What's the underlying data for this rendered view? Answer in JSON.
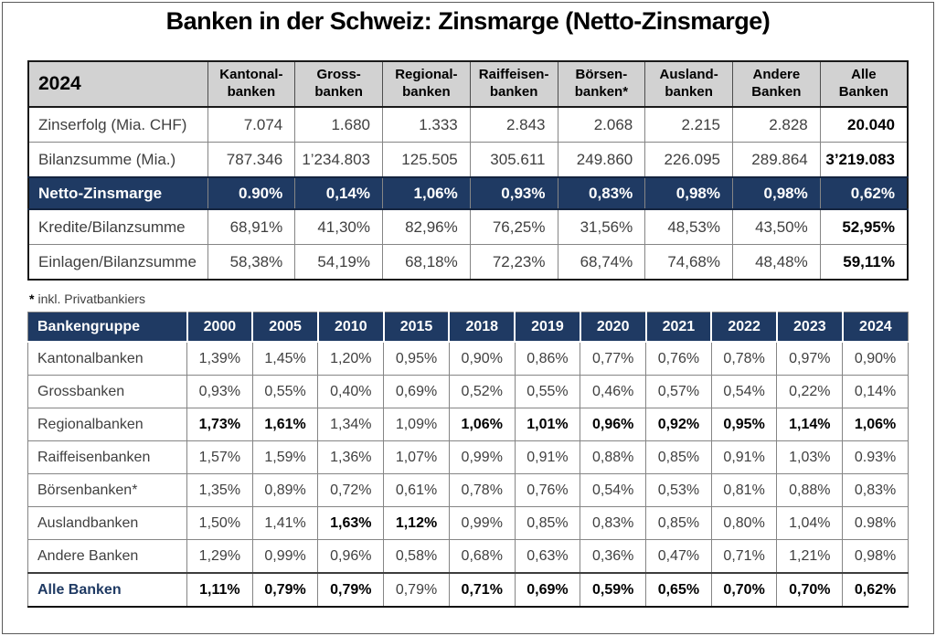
{
  "page": {
    "title": "Banken in der Schweiz: Zinsmarge (Netto-Zinsmarge)",
    "footnote_marker": "*",
    "footnote_text": "inkl. Privatbankiers"
  },
  "colors": {
    "navy": "#1f3a63",
    "header_gray": "#d2d2d2",
    "text_gray": "#3f3f3f",
    "bold_text": "#000000",
    "highlight_text": "#ffffff"
  },
  "table1": {
    "corner_label": "2024",
    "columns": [
      "Kantonal-\nbanken",
      "Gross-\nbanken",
      "Regional-\nbanken",
      "Raiffeisen-\nbanken",
      "Börsen-\nbanken*",
      "Ausland-\nbanken",
      "Andere\nBanken",
      "Alle\nBanken"
    ],
    "rows": [
      {
        "label": "Zinserfolg (Mia. CHF)",
        "highlight": false,
        "values": [
          "7.074",
          "1.680",
          "1.333",
          "2.843",
          "2.068",
          "2.215",
          "2.828",
          "20.040"
        ],
        "bold": [
          false,
          false,
          false,
          false,
          false,
          false,
          false,
          true
        ]
      },
      {
        "label": "Bilanzsumme (Mia.)",
        "highlight": false,
        "values": [
          "787.346",
          "1’234.803",
          "125.505",
          "305.611",
          "249.860",
          "226.095",
          "289.864",
          "3’219.083"
        ],
        "bold": [
          false,
          false,
          false,
          false,
          false,
          false,
          false,
          true
        ]
      },
      {
        "label": "Netto-Zinsmarge",
        "highlight": true,
        "values": [
          "0.90%",
          "0,14%",
          "1,06%",
          "0,93%",
          "0,83%",
          "0,98%",
          "0,98%",
          "0,62%"
        ],
        "bold": [
          true,
          true,
          true,
          true,
          true,
          true,
          true,
          true
        ]
      },
      {
        "label": "Kredite/Bilanzsumme",
        "highlight": false,
        "values": [
          "68,91%",
          "41,30%",
          "82,96%",
          "76,25%",
          "31,56%",
          "48,53%",
          "43,50%",
          "52,95%"
        ],
        "bold": [
          false,
          false,
          false,
          false,
          false,
          false,
          false,
          true
        ]
      },
      {
        "label": "Einlagen/Bilanzsumme",
        "highlight": false,
        "values": [
          "58,38%",
          "54,19%",
          "68,18%",
          "72,23%",
          "68,74%",
          "74,68%",
          "48,48%",
          "59,11%"
        ],
        "bold": [
          false,
          false,
          false,
          false,
          false,
          false,
          false,
          true
        ]
      }
    ]
  },
  "table2": {
    "header": [
      "Bankengruppe",
      "2000",
      "2005",
      "2010",
      "2015",
      "2018",
      "2019",
      "2020",
      "2021",
      "2022",
      "2023",
      "2024"
    ],
    "rows": [
      {
        "label": "Kantonalbanken",
        "total": false,
        "values": [
          "1,39%",
          "1,45%",
          "1,20%",
          "0,95%",
          "0,90%",
          "0,86%",
          "0,77%",
          "0,76%",
          "0,78%",
          "0,97%",
          "0,90%"
        ],
        "bold": [
          false,
          false,
          false,
          false,
          false,
          false,
          false,
          false,
          false,
          false,
          false
        ]
      },
      {
        "label": "Grossbanken",
        "total": false,
        "values": [
          "0,93%",
          "0,55%",
          "0,40%",
          "0,69%",
          "0,52%",
          "0,55%",
          "0,46%",
          "0,57%",
          "0,54%",
          "0,22%",
          "0,14%"
        ],
        "bold": [
          false,
          false,
          false,
          false,
          false,
          false,
          false,
          false,
          false,
          false,
          false
        ]
      },
      {
        "label": "Regionalbanken",
        "total": false,
        "values": [
          "1,73%",
          "1,61%",
          "1,34%",
          "1,09%",
          "1,06%",
          "1,01%",
          "0,96%",
          "0,92%",
          "0,95%",
          "1,14%",
          "1,06%"
        ],
        "bold": [
          true,
          true,
          false,
          false,
          true,
          true,
          true,
          true,
          true,
          true,
          true
        ]
      },
      {
        "label": "Raiffeisenbanken",
        "total": false,
        "values": [
          "1,57%",
          "1,59%",
          "1,36%",
          "1,07%",
          "0,99%",
          "0,91%",
          "0,88%",
          "0,85%",
          "0,91%",
          "1,03%",
          "0.93%"
        ],
        "bold": [
          false,
          false,
          false,
          false,
          false,
          false,
          false,
          false,
          false,
          false,
          false
        ]
      },
      {
        "label": "Börsenbanken*",
        "total": false,
        "values": [
          "1,35%",
          "0,89%",
          "0,72%",
          "0,61%",
          "0,78%",
          "0,76%",
          "0,54%",
          "0,53%",
          "0,81%",
          "0,88%",
          "0,83%"
        ],
        "bold": [
          false,
          false,
          false,
          false,
          false,
          false,
          false,
          false,
          false,
          false,
          false
        ]
      },
      {
        "label": "Auslandbanken",
        "total": false,
        "values": [
          "1,50%",
          "1,41%",
          "1,63%",
          "1,12%",
          "0,99%",
          "0,85%",
          "0,83%",
          "0,85%",
          "0,80%",
          "1,04%",
          "0.98%"
        ],
        "bold": [
          false,
          false,
          true,
          true,
          false,
          false,
          false,
          false,
          false,
          false,
          false
        ]
      },
      {
        "label": "Andere Banken",
        "total": false,
        "values": [
          "1,29%",
          "0,99%",
          "0,96%",
          "0,58%",
          "0,68%",
          "0,63%",
          "0,36%",
          "0,47%",
          "0,71%",
          "1,21%",
          "0,98%"
        ],
        "bold": [
          false,
          false,
          false,
          false,
          false,
          false,
          false,
          false,
          false,
          false,
          false
        ]
      },
      {
        "label": "Alle Banken",
        "total": true,
        "values": [
          "1,11%",
          "0,79%",
          "0,79%",
          "0,79%",
          "0,71%",
          "0,69%",
          "0,59%",
          "0,65%",
          "0,70%",
          "0,70%",
          "0,62%"
        ],
        "bold": [
          true,
          true,
          true,
          false,
          true,
          true,
          true,
          true,
          true,
          true,
          true
        ]
      }
    ]
  }
}
